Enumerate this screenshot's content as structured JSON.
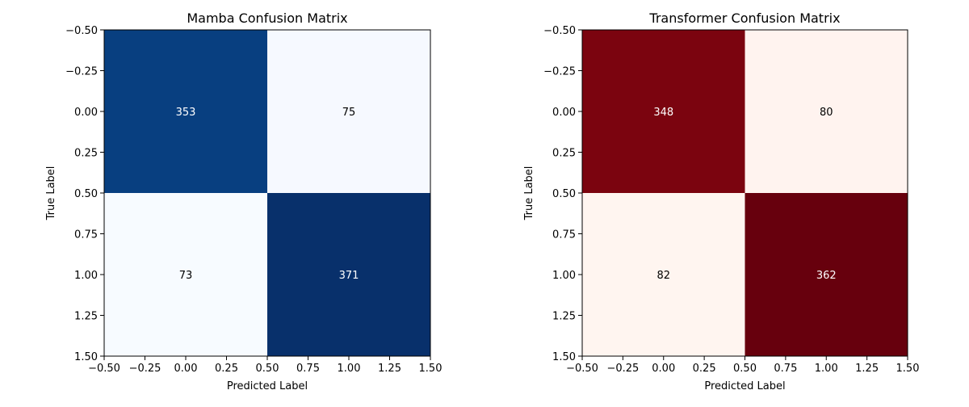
{
  "chart_data": [
    {
      "type": "heatmap",
      "title": "Mamba Confusion Matrix",
      "xlabel": "Predicted Label",
      "ylabel": "True Label",
      "xlim": [
        -0.5,
        1.5
      ],
      "ylim": [
        1.5,
        -0.5
      ],
      "xticks": [
        "−0.50",
        "−0.25",
        "0.00",
        "0.25",
        "0.50",
        "0.75",
        "1.00",
        "1.25",
        "1.50"
      ],
      "yticks": [
        "−0.50",
        "−0.25",
        "0.00",
        "0.25",
        "0.50",
        "0.75",
        "1.00",
        "1.25",
        "1.50"
      ],
      "colormap": "Blues",
      "matrix": [
        [
          353,
          75
        ],
        [
          73,
          371
        ]
      ],
      "cell_colors": [
        [
          "#083f80",
          "#f6f9ff"
        ],
        [
          "#f7fbff",
          "#08306b"
        ]
      ],
      "text_colors": [
        [
          "#ffffff",
          "#000000"
        ],
        [
          "#000000",
          "#ffffff"
        ]
      ],
      "grid": false
    },
    {
      "type": "heatmap",
      "title": "Transformer Confusion Matrix",
      "xlabel": "Predicted Label",
      "ylabel": "True Label",
      "xlim": [
        -0.5,
        1.5
      ],
      "ylim": [
        1.5,
        -0.5
      ],
      "xticks": [
        "−0.50",
        "−0.25",
        "0.00",
        "0.25",
        "0.50",
        "0.75",
        "1.00",
        "1.25",
        "1.50"
      ],
      "yticks": [
        "−0.50",
        "−0.25",
        "0.00",
        "0.25",
        "0.50",
        "0.75",
        "1.00",
        "1.25",
        "1.50"
      ],
      "colormap": "Reds",
      "matrix": [
        [
          348,
          80
        ],
        [
          82,
          362
        ]
      ],
      "cell_colors": [
        [
          "#7b040f",
          "#fff3ef"
        ],
        [
          "#fff5f0",
          "#67000d"
        ]
      ],
      "text_colors": [
        [
          "#ffffff",
          "#000000"
        ],
        [
          "#000000",
          "#ffffff"
        ]
      ],
      "grid": false
    }
  ]
}
